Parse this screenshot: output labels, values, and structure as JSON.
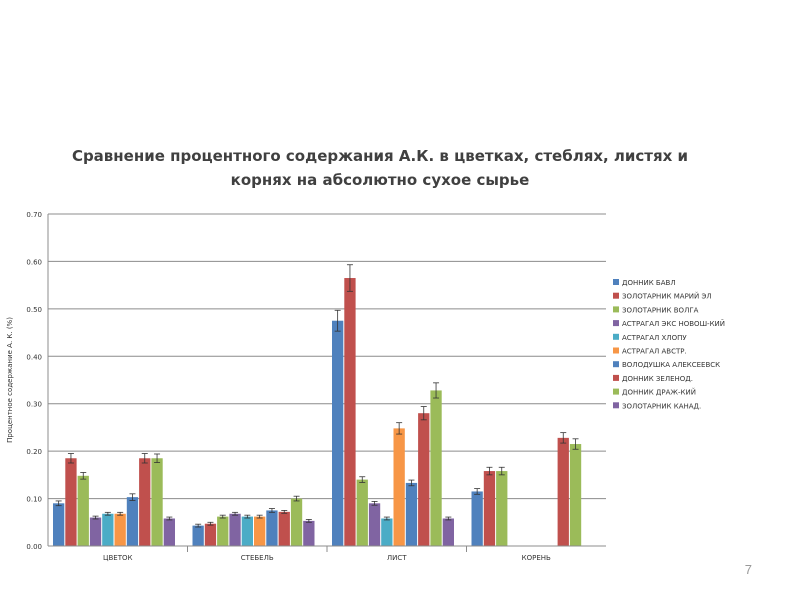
{
  "slide": {
    "page_number": "7"
  },
  "chart_data": {
    "type": "bar",
    "title_lines": [
      "Сравнение процентного содержания А.К. в цветках, стеблях, листях и",
      "корнях на абсолютно сухое сырье"
    ],
    "xlabel": "",
    "ylabel": "Процентное содержание А. К. (%)",
    "ylim": [
      0,
      0.7
    ],
    "yticks": [
      "0.00",
      "0.10",
      "0.20",
      "0.30",
      "0.40",
      "0.50",
      "0.60",
      "0.70"
    ],
    "categories": [
      "ЦВЕТОК",
      "СТЕБЕЛЬ",
      "ЛИСТ",
      "КОРЕНЬ"
    ],
    "grid": true,
    "legend_position": "right",
    "series": [
      {
        "name": "ДОННИК БАВЛ",
        "color": "#4F81BD",
        "values": [
          0.09,
          0.043,
          0.475,
          0.115
        ],
        "errors": [
          0.005,
          0.003,
          0.022,
          0.006
        ]
      },
      {
        "name": "ЗОЛОТАРНИК МАРИЙ ЭЛ",
        "color": "#C0504D",
        "values": [
          0.185,
          0.047,
          0.565,
          0.158
        ],
        "errors": [
          0.01,
          0.003,
          0.028,
          0.008
        ]
      },
      {
        "name": "ЗОЛОТАРНИК ВОЛГА",
        "color": "#9BBB59",
        "values": [
          0.148,
          0.062,
          0.14,
          0.158
        ],
        "errors": [
          0.007,
          0.003,
          0.006,
          0.008
        ]
      },
      {
        "name": "АСТРАГАЛ ЭКС НОВОШ-КИЙ",
        "color": "#8064A2",
        "values": [
          0.06,
          0.068,
          0.09,
          null
        ],
        "errors": [
          0.003,
          0.003,
          0.004,
          null
        ]
      },
      {
        "name": "АСТРАГАЛ ХЛОПУ",
        "color": "#4BACC6",
        "values": [
          0.068,
          0.062,
          0.058,
          null
        ],
        "errors": [
          0.003,
          0.003,
          0.003,
          null
        ]
      },
      {
        "name": "АСТРАГАЛ АВСТР.",
        "color": "#F79646",
        "values": [
          0.068,
          0.062,
          0.248,
          null
        ],
        "errors": [
          0.003,
          0.003,
          0.012,
          null
        ]
      },
      {
        "name": "ВОЛОДУШКА АЛЕКСЕЕВСК",
        "color": "#4F81BD",
        "values": [
          0.103,
          0.075,
          0.133,
          null
        ],
        "errors": [
          0.007,
          0.004,
          0.006,
          null
        ]
      },
      {
        "name": "ДОННИК ЗЕЛЕНОД.",
        "color": "#C0504D",
        "values": [
          0.185,
          0.072,
          0.28,
          0.228
        ],
        "errors": [
          0.01,
          0.003,
          0.014,
          0.011
        ]
      },
      {
        "name": "ДОННИК ДРАЖ-КИЙ",
        "color": "#9BBB59",
        "values": [
          0.185,
          0.1,
          0.328,
          0.215
        ],
        "errors": [
          0.009,
          0.005,
          0.016,
          0.011
        ]
      },
      {
        "name": "ЗОЛОТАРНИК КАНАД.",
        "color": "#8064A2",
        "values": [
          0.058,
          0.053,
          0.058,
          null
        ],
        "errors": [
          0.003,
          0.003,
          0.003,
          null
        ]
      }
    ]
  }
}
